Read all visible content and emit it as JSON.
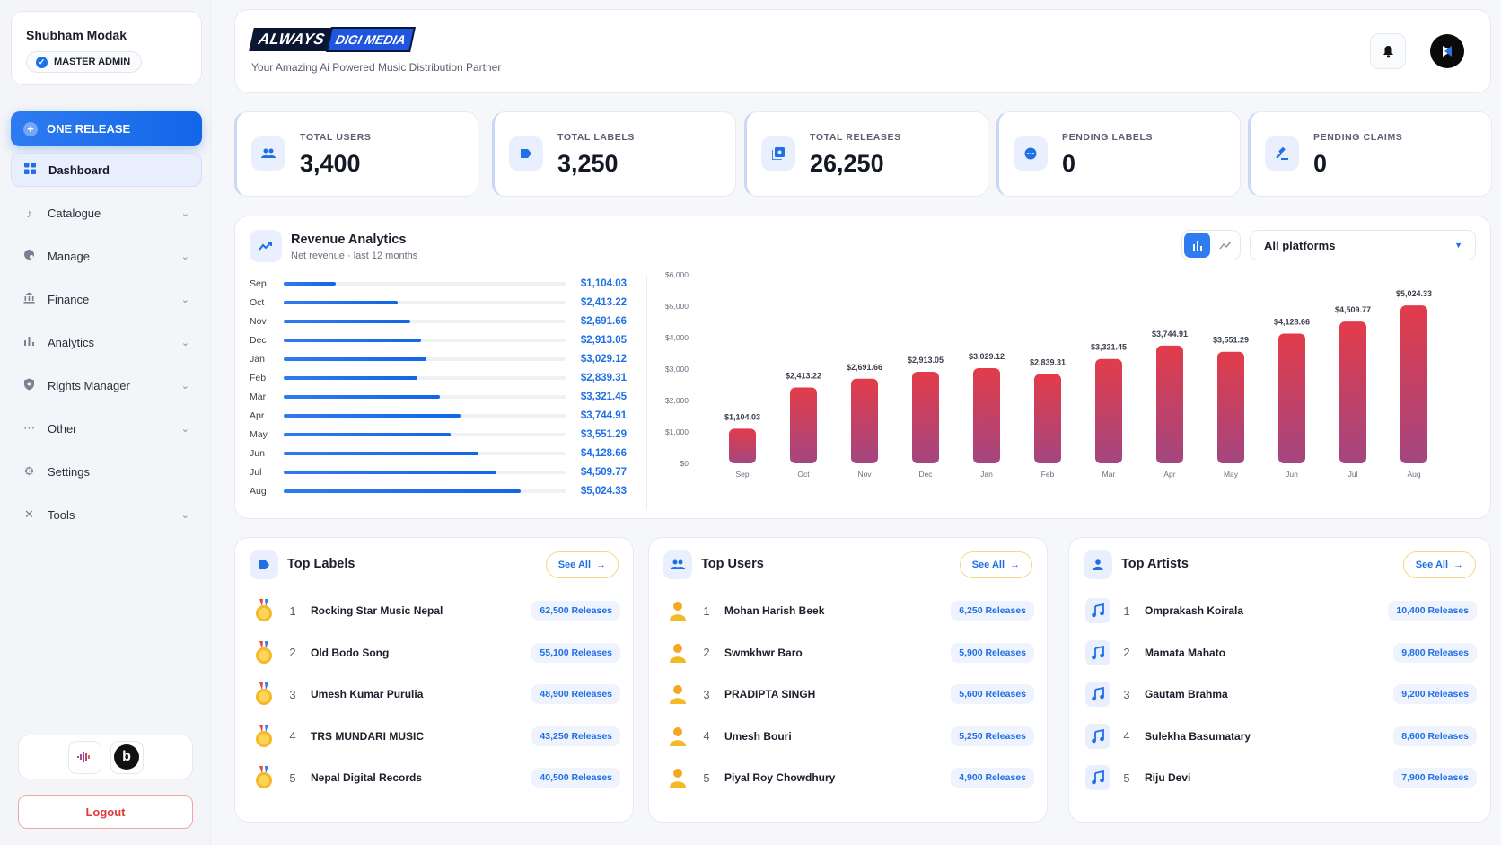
{
  "user": {
    "name": "Shubham Modak",
    "role": "MASTER ADMIN"
  },
  "sidebar": {
    "primary_button": "ONE RELEASE",
    "items": [
      {
        "label": "Dashboard",
        "icon": "grid-icon",
        "active": true
      },
      {
        "label": "Catalogue",
        "icon": "music-note-icon"
      },
      {
        "label": "Manage",
        "icon": "palette-icon"
      },
      {
        "label": "Finance",
        "icon": "bank-icon"
      },
      {
        "label": "Analytics",
        "icon": "bar-chart-icon"
      },
      {
        "label": "Rights Manager",
        "icon": "shield-icon"
      },
      {
        "label": "Other",
        "icon": "ellipsis-icon"
      },
      {
        "label": "Settings",
        "icon": "gear-icon"
      },
      {
        "label": "Tools",
        "icon": "tools-icon"
      }
    ],
    "logout": "Logout"
  },
  "header": {
    "logo_part1": "ALWAYS",
    "logo_part2": "DIGI MEDIA",
    "tagline": "Your Amazing Ai Powered Music Distribution Partner"
  },
  "stats": [
    {
      "label": "TOTAL USERS",
      "value": "3,400",
      "icon": "users-icon"
    },
    {
      "label": "TOTAL LABELS",
      "value": "3,250",
      "icon": "label-tag-icon"
    },
    {
      "label": "TOTAL RELEASES",
      "value": "26,250",
      "icon": "album-icon"
    },
    {
      "label": "PENDING LABELS",
      "value": "0",
      "icon": "pending-icon"
    },
    {
      "label": "PENDING CLAIMS",
      "value": "0",
      "icon": "gavel-icon"
    }
  ],
  "revenue": {
    "title": "Revenue Analytics",
    "subtitle": "Net revenue · last 12 months",
    "platform_selected": "All platforms"
  },
  "chart_data": {
    "type": "bar",
    "categories": [
      "Sep",
      "Oct",
      "Nov",
      "Dec",
      "Jan",
      "Feb",
      "Mar",
      "Apr",
      "May",
      "Jun",
      "Jul",
      "Aug"
    ],
    "values": [
      1104.03,
      2413.22,
      2691.66,
      2913.05,
      3029.12,
      2839.31,
      3321.45,
      3744.91,
      3551.29,
      4128.66,
      4509.77,
      5024.33
    ],
    "value_labels": [
      "$1,104.03",
      "$2,413.22",
      "$2,691.66",
      "$2,913.05",
      "$3,029.12",
      "$2,839.31",
      "$3,321.45",
      "$3,744.91",
      "$3,551.29",
      "$4,128.66",
      "$4,509.77",
      "$5,024.33"
    ],
    "yticks": [
      "$0",
      "$1,000",
      "$2,000",
      "$3,000",
      "$4,000",
      "$5,000",
      "$6,000"
    ],
    "ylim": [
      0,
      6000
    ],
    "grid": false,
    "bar_color_top": "#e23c4a",
    "bar_color_bottom": "#a34680",
    "hbar_color": "#1f6fe5"
  },
  "top_labels": {
    "title": "Top Labels",
    "see_all": "See All",
    "items": [
      {
        "rank": "1",
        "name": "Rocking Star Music Nepal",
        "count": "62,500 Releases"
      },
      {
        "rank": "2",
        "name": "Old Bodo Song",
        "count": "55,100 Releases"
      },
      {
        "rank": "3",
        "name": "Umesh Kumar Purulia",
        "count": "48,900 Releases"
      },
      {
        "rank": "4",
        "name": "TRS MUNDARI MUSIC",
        "count": "43,250 Releases"
      },
      {
        "rank": "5",
        "name": "Nepal Digital Records",
        "count": "40,500 Releases"
      }
    ]
  },
  "top_users": {
    "title": "Top Users",
    "see_all": "See All",
    "items": [
      {
        "rank": "1",
        "name": "Mohan Harish Beek",
        "count": "6,250 Releases"
      },
      {
        "rank": "2",
        "name": "Swmkhwr Baro",
        "count": "5,900 Releases"
      },
      {
        "rank": "3",
        "name": "PRADIPTA SINGH",
        "count": "5,600 Releases"
      },
      {
        "rank": "4",
        "name": "Umesh Bouri",
        "count": "5,250 Releases"
      },
      {
        "rank": "5",
        "name": "Piyal Roy Chowdhury",
        "count": "4,900 Releases"
      }
    ]
  },
  "top_artists": {
    "title": "Top Artists",
    "see_all": "See All",
    "items": [
      {
        "rank": "1",
        "name": "Omprakash Koirala",
        "count": "10,400 Releases"
      },
      {
        "rank": "2",
        "name": "Mamata Mahato",
        "count": "9,800 Releases"
      },
      {
        "rank": "3",
        "name": "Gautam Brahma",
        "count": "9,200 Releases"
      },
      {
        "rank": "4",
        "name": "Sulekha Basumatary",
        "count": "8,600 Releases"
      },
      {
        "rank": "5",
        "name": "Riju Devi",
        "count": "7,900 Releases"
      }
    ]
  }
}
